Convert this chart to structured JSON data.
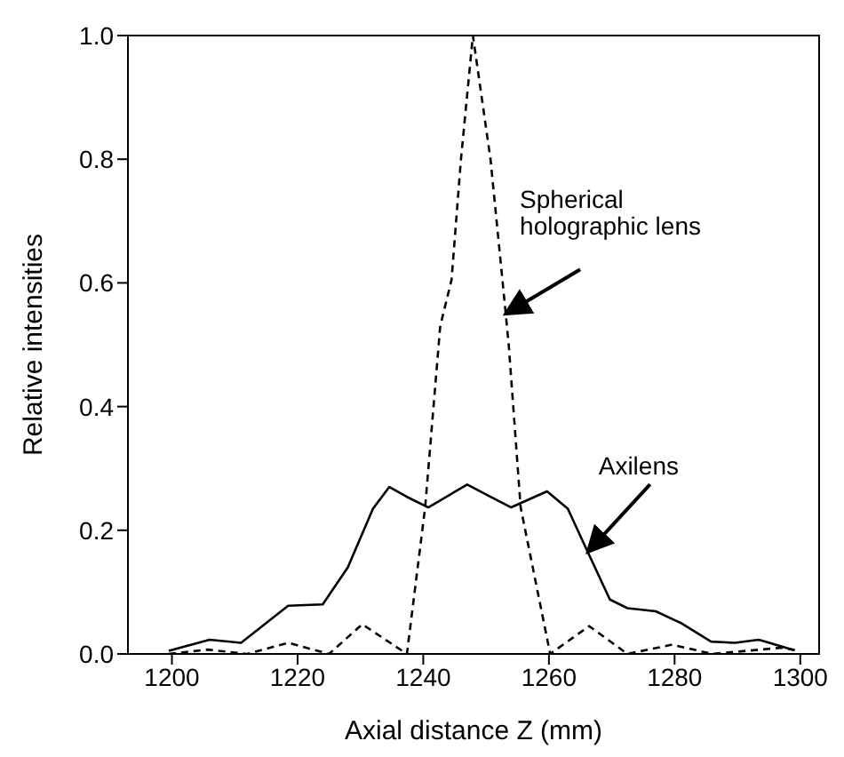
{
  "chart_data": {
    "type": "line",
    "xlabel": "Axial distance Z (mm)",
    "ylabel": "Relative intensities",
    "xlim": [
      1193,
      1303
    ],
    "ylim": [
      0,
      1
    ],
    "xticks": [
      1200,
      1220,
      1240,
      1260,
      1280,
      1300
    ],
    "yticks": [
      {
        "value": 0,
        "label": "0.0"
      },
      0.2,
      0.4,
      0.6,
      0.8,
      {
        "value": 1,
        "label": "1.0"
      }
    ],
    "marker": "none",
    "series": [
      {
        "color": "#000000",
        "line_style": "solid",
        "x": [
          1199.5,
          1206,
          1211,
          1218.5,
          1224,
          1228,
          1232,
          1234.6,
          1237.4,
          1240.8,
          1247,
          1250.7,
          1254,
          1259.7,
          1263,
          1265.9,
          1269.7,
          1272.5,
          1277,
          1281,
          1285.8,
          1289.6,
          1293.4,
          1299
        ],
        "values": [
          0.005,
          0.023,
          0.018,
          0.078,
          0.08,
          0.14,
          0.235,
          0.27,
          0.254,
          0.237,
          0.274,
          0.254,
          0.237,
          0.263,
          0.235,
          0.171,
          0.088,
          0.074,
          0.069,
          0.05,
          0.02,
          0.018,
          0.023,
          0.006
        ]
      },
      {
        "color": "#000000",
        "line_style": "dashed",
        "x": [
          1199.5,
          1205.7,
          1212,
          1218.5,
          1225,
          1230.3,
          1237.4,
          1240.3,
          1242.7,
          1244.5,
          1246,
          1247.9,
          1250.7,
          1252.6,
          1253.6,
          1255.5,
          1260.2,
          1266.4,
          1272.5,
          1279.6,
          1286,
          1297,
          1300
        ],
        "values": [
          0,
          0.007,
          0,
          0.018,
          0,
          0.048,
          0,
          0.237,
          0.53,
          0.605,
          0.8,
          1,
          0.8,
          0.605,
          0.5,
          0.237,
          0,
          0.045,
          0,
          0.015,
          0,
          0.01,
          0.005
        ]
      }
    ],
    "annotations": [
      {
        "text": "Spherical holographic lens",
        "x": 1253.1,
        "y": 0.55
      },
      {
        "text": "Axilens",
        "x": 1266.2,
        "y": 0.165
      }
    ]
  }
}
